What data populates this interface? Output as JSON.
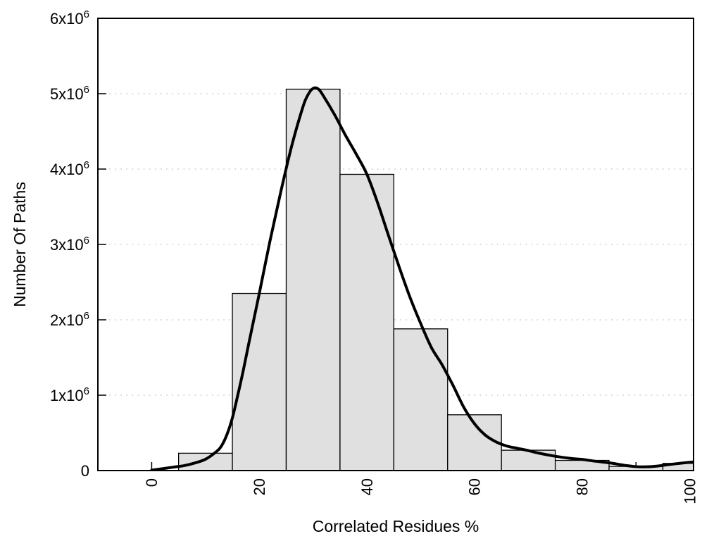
{
  "chart_data": {
    "type": "bar",
    "subtype": "histogram_with_smooth_curve",
    "title": "",
    "xlabel": "Correlated Residues %",
    "ylabel": "Number Of Paths",
    "xlim": [
      -10,
      100.7
    ],
    "ylim": [
      0,
      6000000
    ],
    "grid": "horizontal-dotted",
    "legend": "none",
    "colors": {
      "background": "#ffffff",
      "bar_fill": "#e0e0e0",
      "bar_edge": "#000000",
      "curve": "#000000",
      "grid": "#c8c8c8",
      "frame": "#000000",
      "text": "#000000"
    },
    "bins": {
      "width": 10,
      "centers": [
        10,
        20,
        30,
        40,
        50,
        60,
        70,
        80,
        90,
        100
      ],
      "counts": [
        230000,
        2350000,
        5060000,
        3930000,
        1880000,
        740000,
        270000,
        135000,
        55000,
        95000
      ]
    },
    "curve_points": [
      [
        0,
        5000
      ],
      [
        2,
        25000
      ],
      [
        4,
        45000
      ],
      [
        6,
        65000
      ],
      [
        8,
        100000
      ],
      [
        10,
        150000
      ],
      [
        12,
        250000
      ],
      [
        13,
        330000
      ],
      [
        14,
        480000
      ],
      [
        15,
        700000
      ],
      [
        16,
        1000000
      ],
      [
        17,
        1320000
      ],
      [
        18,
        1670000
      ],
      [
        19,
        2010000
      ],
      [
        20,
        2350000
      ],
      [
        22,
        3050000
      ],
      [
        24,
        3700000
      ],
      [
        26,
        4300000
      ],
      [
        28,
        4800000
      ],
      [
        29,
        4980000
      ],
      [
        30,
        5070000
      ],
      [
        31,
        5060000
      ],
      [
        32,
        4960000
      ],
      [
        34,
        4720000
      ],
      [
        36,
        4450000
      ],
      [
        38,
        4200000
      ],
      [
        40,
        3930000
      ],
      [
        42,
        3550000
      ],
      [
        44,
        3120000
      ],
      [
        46,
        2700000
      ],
      [
        48,
        2300000
      ],
      [
        50,
        1950000
      ],
      [
        52,
        1630000
      ],
      [
        54,
        1400000
      ],
      [
        56,
        1130000
      ],
      [
        58,
        840000
      ],
      [
        60,
        620000
      ],
      [
        62,
        470000
      ],
      [
        64,
        380000
      ],
      [
        66,
        325000
      ],
      [
        68,
        295000
      ],
      [
        70,
        265000
      ],
      [
        72,
        230000
      ],
      [
        75,
        190000
      ],
      [
        78,
        160000
      ],
      [
        80,
        148000
      ],
      [
        82,
        128000
      ],
      [
        85,
        103000
      ],
      [
        87,
        80000
      ],
      [
        88,
        68000
      ],
      [
        90,
        52000
      ],
      [
        92,
        50000
      ],
      [
        94,
        60000
      ],
      [
        96,
        78000
      ],
      [
        98,
        95000
      ],
      [
        100,
        110000
      ],
      [
        100.7,
        113000
      ]
    ],
    "xticks": {
      "label_values": [
        0,
        20,
        40,
        60,
        80,
        100
      ],
      "labels": [
        "0",
        "20",
        "40",
        "60",
        "80",
        "100"
      ],
      "minor_step": 10,
      "labels_rotated_90": true
    },
    "yticks": {
      "values": [
        0,
        1000000,
        2000000,
        3000000,
        4000000,
        5000000,
        6000000
      ],
      "labels": [
        "0",
        "1x10^6",
        "2x10^6",
        "3x10^6",
        "4x10^6",
        "5x10^6",
        "6x10^6"
      ]
    }
  }
}
